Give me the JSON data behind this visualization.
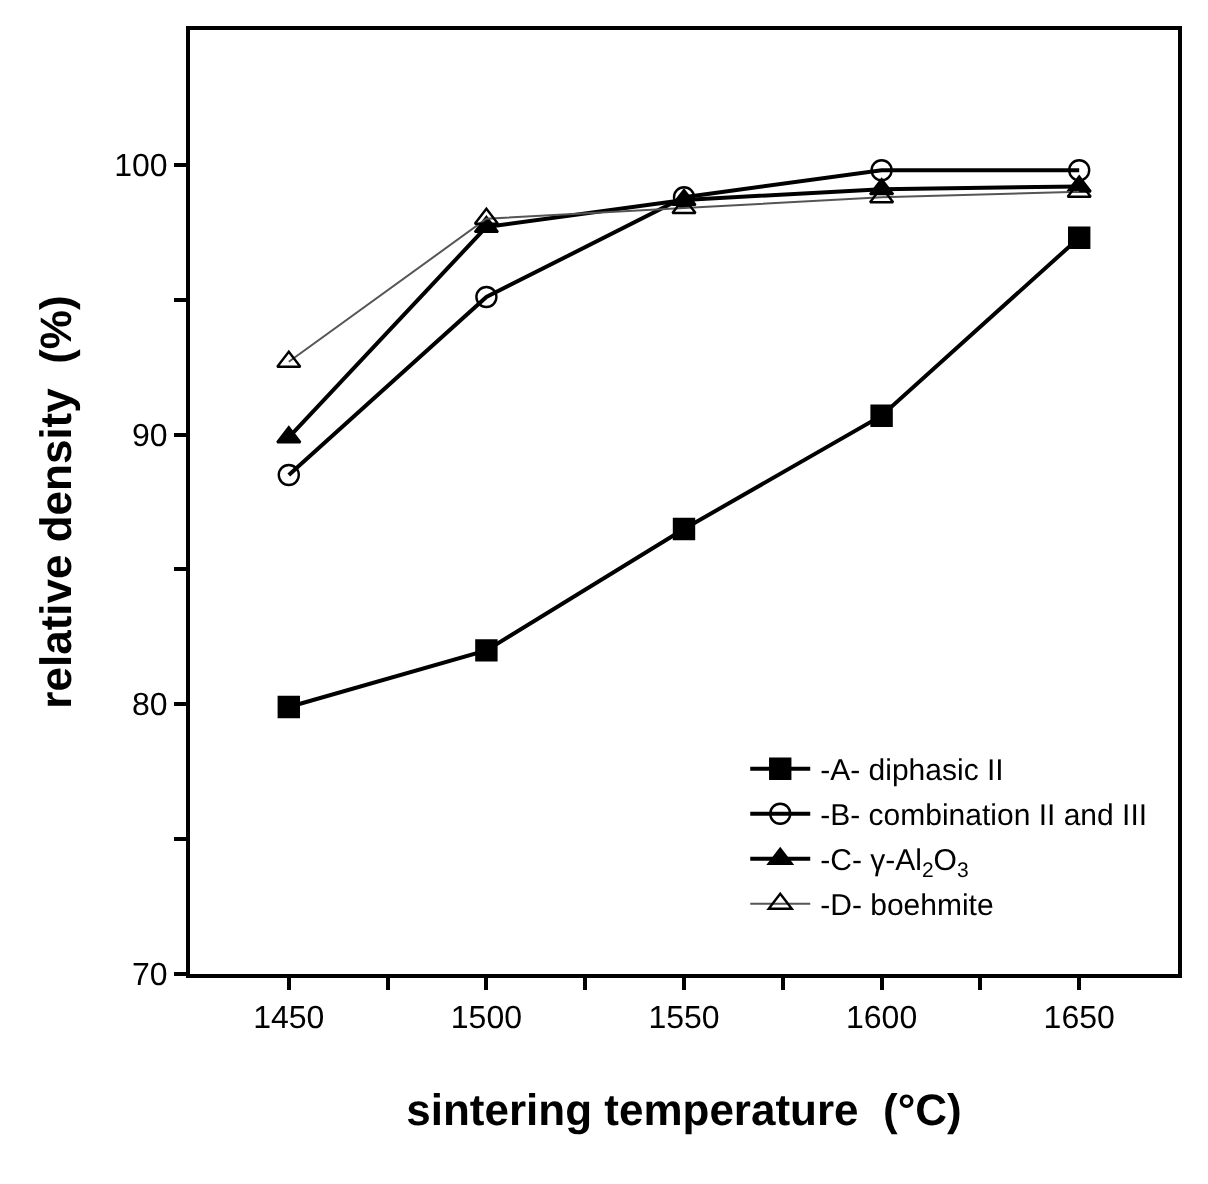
{
  "chart_data": {
    "type": "line",
    "xlabel": "sintering temperature  (°C)",
    "ylabel": "relative density  (%)",
    "x": [
      1450,
      1500,
      1550,
      1600,
      1650
    ],
    "series": [
      {
        "name": "-A- diphasic II",
        "color": "#000000",
        "marker": "square",
        "values": [
          79.9,
          82.0,
          86.5,
          90.7,
          97.3
        ]
      },
      {
        "name": "-B- combination II and III",
        "color": "#000000",
        "marker": "circle-open",
        "values": [
          88.5,
          95.1,
          98.8,
          99.8,
          99.8
        ]
      },
      {
        "name": "-C- γ-Al$_{2}$O$_{3}$",
        "color": "#000000",
        "marker": "triangle",
        "values": [
          89.9,
          97.7,
          98.7,
          99.1,
          99.2
        ]
      },
      {
        "name": "-D- boehmite",
        "color": "#555555",
        "marker": "triangle-open",
        "values": [
          92.7,
          98.0,
          98.4,
          98.8,
          99.0
        ]
      }
    ],
    "xlim": [
      1425,
      1675
    ],
    "ylim": [
      70,
      105
    ],
    "xticks": [
      1450,
      {
        "value": 1475,
        "label": null
      },
      1500,
      {
        "value": 1525,
        "label": null
      },
      1550,
      {
        "value": 1575,
        "label": null
      },
      1600,
      {
        "value": 1625,
        "label": null
      },
      1650
    ],
    "yticks": [
      70,
      {
        "value": 75,
        "label": null
      },
      80,
      {
        "value": 85,
        "label": null
      },
      90,
      {
        "value": 95,
        "label": null
      },
      100
    ],
    "legend": "bottom right",
    "line_style": "solid"
  }
}
